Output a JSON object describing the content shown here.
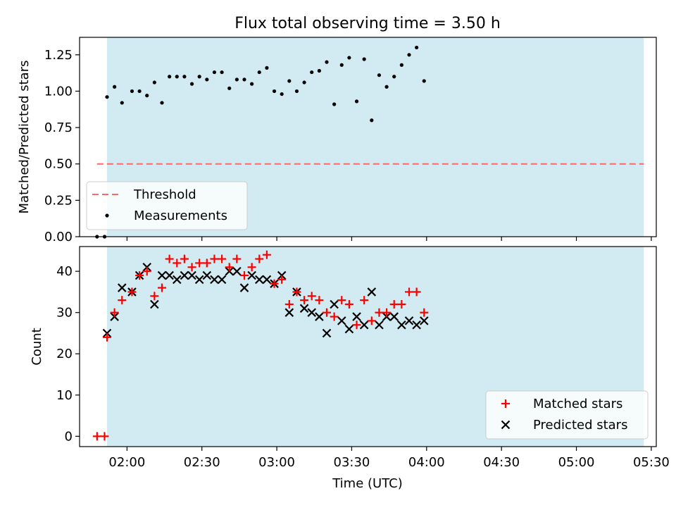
{
  "title": "Flux total observing time = 3.50 h",
  "xlabel": "Time (UTC)",
  "colors": {
    "band": "#add8e6",
    "threshold": "#ff6666",
    "measurements": "#000000",
    "matched": "#ff0000",
    "predicted": "#000000"
  },
  "chart_data": [
    {
      "type": "scatter",
      "ylabel": "Matched/Predicted stars",
      "ylim": [
        0,
        1.37
      ],
      "yticks": [
        0.0,
        0.25,
        0.5,
        0.75,
        1.0,
        1.25
      ],
      "ytick_labels": [
        "0.00",
        "0.25",
        "0.50",
        "0.75",
        "1.00",
        "1.25"
      ],
      "xlim": [
        "01:41",
        "05:32"
      ],
      "shaded_interval": [
        "01:52",
        "05:27"
      ],
      "threshold": {
        "name": "Threshold",
        "value": 0.5,
        "x": [
          "01:48",
          "05:27"
        ]
      },
      "legend": {
        "placement": "lower-left",
        "entries": [
          "Threshold",
          "Measurements"
        ]
      },
      "series": [
        {
          "name": "Measurements",
          "marker": "dot",
          "x": [
            "01:48",
            "01:51",
            "01:52",
            "01:55",
            "01:58",
            "02:02",
            "02:05",
            "02:08",
            "02:11",
            "02:14",
            "02:17",
            "02:20",
            "02:23",
            "02:26",
            "02:29",
            "02:32",
            "02:35",
            "02:38",
            "02:41",
            "02:44",
            "02:47",
            "02:50",
            "02:53",
            "02:56",
            "02:59",
            "03:02",
            "03:05",
            "03:08",
            "03:11",
            "03:14",
            "03:17",
            "03:20",
            "03:23",
            "03:26",
            "03:29",
            "03:32",
            "03:35",
            "03:38",
            "03:41",
            "03:44",
            "03:47",
            "03:50",
            "03:53",
            "03:56",
            "03:59",
            "04:02",
            "04:05",
            "04:08",
            "04:11",
            "04:14",
            "04:17",
            "04:20",
            "04:23",
            "04:26",
            "04:29",
            "04:32",
            "04:35",
            "04:38",
            "04:41",
            "04:44",
            "04:47",
            "04:50",
            "04:53",
            "04:56",
            "04:59",
            "05:02"
          ],
          "values": [
            0.0,
            0.0,
            0.96,
            1.03,
            0.92,
            1.0,
            1.0,
            0.97,
            1.06,
            0.92,
            1.1,
            1.1,
            1.1,
            1.05,
            1.1,
            1.08,
            1.13,
            1.13,
            1.02,
            1.08,
            1.08,
            1.05,
            1.13,
            1.16,
            1.0,
            0.98,
            1.07,
            1.0,
            1.06,
            1.13,
            1.14,
            1.2,
            0.91,
            1.18,
            1.23,
            0.93,
            1.22,
            0.8,
            1.11,
            1.03,
            1.1,
            1.18,
            1.25,
            1.3,
            1.07,
            null,
            null,
            null,
            null,
            null,
            null,
            null,
            null,
            null,
            null,
            null,
            null,
            null,
            null,
            null,
            null,
            null,
            null,
            null,
            null,
            null
          ]
        }
      ]
    },
    {
      "type": "scatter",
      "ylabel": "Count",
      "ylim": [
        -2.5,
        46
      ],
      "yticks": [
        0,
        10,
        20,
        30,
        40
      ],
      "ytick_labels": [
        "0",
        "10",
        "20",
        "30",
        "40"
      ],
      "xlim": [
        "01:41",
        "05:32"
      ],
      "xticks": [
        "02:00",
        "02:30",
        "03:00",
        "03:30",
        "04:00",
        "04:30",
        "05:00",
        "05:30"
      ],
      "shaded_interval": [
        "01:52",
        "05:27"
      ],
      "legend": {
        "placement": "lower-right",
        "entries": [
          "Matched stars",
          "Predicted stars"
        ]
      },
      "series": [
        {
          "name": "Matched stars",
          "marker": "plus",
          "x": [
            "01:48",
            "01:51",
            "01:52",
            "01:55",
            "01:58",
            "02:02",
            "02:05",
            "02:08",
            "02:11",
            "02:14",
            "02:17",
            "02:20",
            "02:23",
            "02:26",
            "02:29",
            "02:32",
            "02:35",
            "02:38",
            "02:41",
            "02:44",
            "02:47",
            "02:50",
            "02:53",
            "02:56",
            "02:59",
            "03:02",
            "03:05",
            "03:08",
            "03:11",
            "03:14",
            "03:17",
            "03:20",
            "03:23",
            "03:26",
            "03:29",
            "03:32",
            "03:35",
            "03:38",
            "03:41",
            "03:44",
            "03:47",
            "03:50",
            "03:53",
            "03:56",
            "03:59",
            "04:02",
            "04:05",
            "04:08",
            "04:11",
            "04:14",
            "04:17",
            "04:20",
            "04:23",
            "04:26",
            "04:29",
            "04:32",
            "04:35",
            "04:38",
            "04:41",
            "04:44",
            "04:47",
            "04:50",
            "04:53",
            "04:56",
            "04:59",
            "05:02"
          ],
          "values": [
            0,
            0,
            24,
            30,
            33,
            35,
            39,
            40,
            34,
            36,
            43,
            42,
            43,
            41,
            42,
            42,
            43,
            43,
            41,
            43,
            39,
            41,
            43,
            44,
            37,
            38,
            32,
            35,
            33,
            34,
            33,
            30,
            29,
            33,
            32,
            27,
            33,
            28,
            30,
            30,
            32,
            32,
            35,
            35,
            30,
            null,
            null,
            null,
            null,
            null,
            null,
            null,
            null,
            null,
            null,
            null,
            null,
            null,
            null,
            null,
            null,
            null,
            null,
            null,
            null,
            null
          ]
        },
        {
          "name": "Predicted stars",
          "marker": "x",
          "x": [
            "01:52",
            "01:55",
            "01:58",
            "02:02",
            "02:05",
            "02:08",
            "02:11",
            "02:14",
            "02:17",
            "02:20",
            "02:23",
            "02:26",
            "02:29",
            "02:32",
            "02:35",
            "02:38",
            "02:41",
            "02:44",
            "02:47",
            "02:50",
            "02:53",
            "02:56",
            "02:59",
            "03:02",
            "03:05",
            "03:08",
            "03:11",
            "03:14",
            "03:17",
            "03:20",
            "03:23",
            "03:26",
            "03:29",
            "03:32",
            "03:35",
            "03:38",
            "03:41",
            "03:44",
            "03:47",
            "03:50",
            "03:53",
            "03:56",
            "03:59"
          ],
          "values": [
            25,
            29,
            36,
            35,
            39,
            41,
            32,
            39,
            39,
            38,
            39,
            39,
            38,
            39,
            38,
            38,
            40,
            40,
            36,
            39,
            38,
            38,
            37,
            39,
            30,
            35,
            31,
            30,
            29,
            25,
            32,
            28,
            26,
            29,
            27,
            35,
            27,
            29,
            29,
            27,
            28,
            27,
            28
          ]
        }
      ]
    }
  ]
}
